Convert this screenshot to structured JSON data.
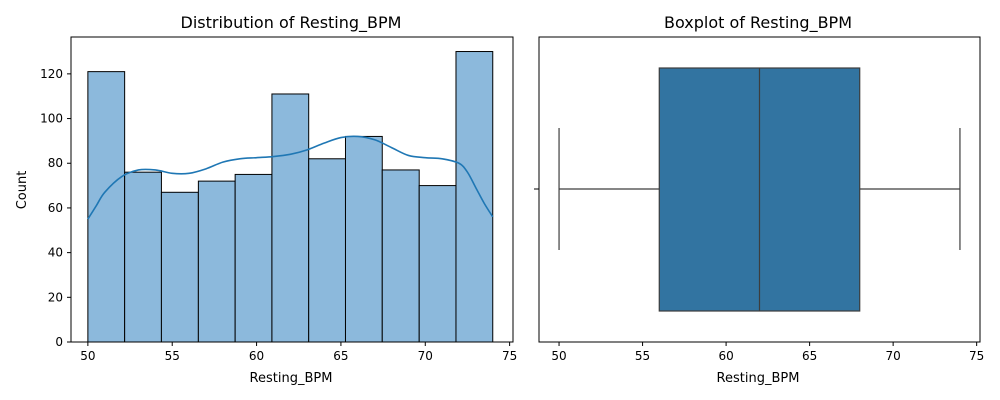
{
  "chart_data": [
    {
      "type": "bar",
      "subtype": "histogram-with-kde",
      "title": "Distribution of Resting_BPM",
      "xlabel": "Resting_BPM",
      "ylabel": "Count",
      "xlim": [
        49,
        75.2
      ],
      "ylim": [
        0,
        136.5
      ],
      "x_ticks": [
        50,
        55,
        60,
        65,
        70,
        75
      ],
      "y_ticks": [
        0,
        20,
        40,
        60,
        80,
        100,
        120
      ],
      "bin_edges": [
        50,
        52.18,
        54.36,
        56.55,
        58.73,
        60.91,
        63.09,
        65.27,
        67.45,
        69.64,
        71.82,
        74
      ],
      "values": [
        121,
        76,
        67,
        72,
        75,
        111,
        82,
        92,
        77,
        70,
        130
      ],
      "bar_color": "#8cb9dc",
      "edge_color": "#000000",
      "kde_color": "#1f77b4",
      "kde": {
        "x": [
          50,
          50.5,
          51,
          52,
          53,
          54,
          55,
          56,
          57,
          58,
          59,
          60,
          61,
          62,
          63,
          64,
          65,
          66,
          67,
          68,
          69,
          70,
          71,
          72,
          72.5,
          73,
          73.5,
          74
        ],
        "y": [
          55,
          61,
          67,
          74,
          77,
          77,
          75.5,
          75.5,
          77.5,
          80.5,
          82,
          82.5,
          83,
          84,
          86,
          89,
          91.5,
          92,
          90.5,
          87,
          83.5,
          82.5,
          82,
          80,
          76,
          69,
          62,
          56
        ]
      }
    },
    {
      "type": "box",
      "title": "Boxplot of Resting_BPM",
      "xlabel": "Resting_BPM",
      "xlim": [
        48.8,
        75.2
      ],
      "x_ticks": [
        50,
        55,
        60,
        65,
        70,
        75
      ],
      "stats": {
        "min": 50,
        "q1": 56,
        "median": 62,
        "q3": 68,
        "max": 74
      },
      "box_color": "#3274a1",
      "line_color": "#3d3d3d"
    }
  ]
}
